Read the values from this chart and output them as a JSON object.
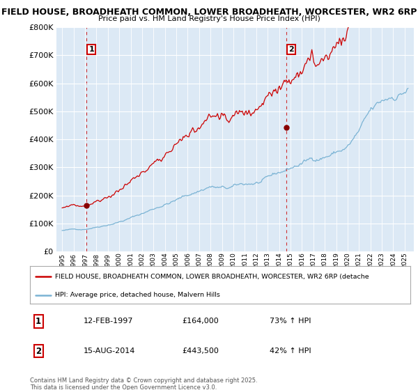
{
  "title_line1": "FIELD HOUSE, BROADHEATH COMMON, LOWER BROADHEATH, WORCESTER, WR2 6RP",
  "title_line2": "Price paid vs. HM Land Registry's House Price Index (HPI)",
  "background_color": "#dce9f5",
  "plot_bg_color": "#dce9f5",
  "red_line_color": "#cc0000",
  "blue_line_color": "#7ab3d4",
  "red_line_label": "FIELD HOUSE, BROADHEATH COMMON, LOWER BROADHEATH, WORCESTER, WR2 6RP (detache",
  "blue_line_label": "HPI: Average price, detached house, Malvern Hills",
  "annotation1_label": "1",
  "annotation1_date": "12-FEB-1997",
  "annotation1_price": "£164,000",
  "annotation1_hpi": "73% ↑ HPI",
  "annotation2_label": "2",
  "annotation2_date": "15-AUG-2014",
  "annotation2_price": "£443,500",
  "annotation2_hpi": "42% ↑ HPI",
  "footnote": "Contains HM Land Registry data © Crown copyright and database right 2025.\nThis data is licensed under the Open Government Licence v3.0.",
  "ylim_max": 800000,
  "ylim_min": 0,
  "ytick_step": 100000,
  "xmin": 1994.5,
  "xmax": 2025.8,
  "sale1_year": 1997.12,
  "sale1_value": 164000,
  "sale2_year": 2014.62,
  "sale2_value": 443500,
  "grid_color": "#c8d8e8",
  "vline_color": "#cc0000",
  "marker_color": "#880000"
}
